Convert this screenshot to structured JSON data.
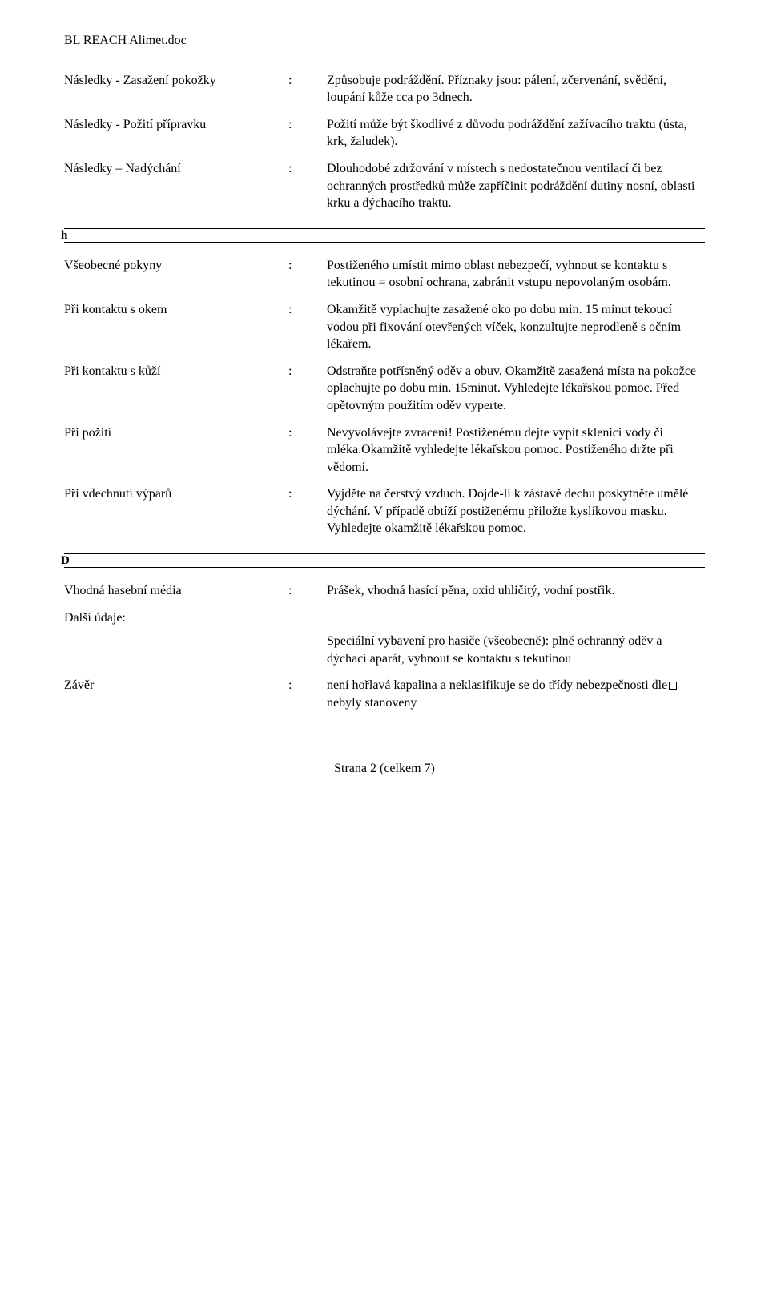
{
  "header": "BL REACH Alimet.doc",
  "section_a": [
    {
      "label": "Následky - Zasažení pokožky",
      "value": "Způsobuje podráždění. Příznaky jsou: pálení, zčervenání, svědění, loupání kůže cca po 3dnech."
    },
    {
      "label": "Následky - Požití přípravku",
      "value": "Požití může být škodlivé z důvodu podráždění zažívacího traktu (ústa, krk, žaludek)."
    },
    {
      "label": "Následky – Nadýchání",
      "value": "Dlouhodobé zdržování v místech s nedostatečnou ventilací či bez ochranných prostředků může zapříčinit podráždění dutiny nosní, oblasti krku a dýchacího traktu."
    }
  ],
  "divider1_glyph": "h",
  "section_b": [
    {
      "label": "Všeobecné pokyny",
      "value": "Postiženého umístit mimo oblast nebezpečí, vyhnout se kontaktu s tekutinou = osobní ochrana, zabránit vstupu nepovolaným osobám."
    },
    {
      "label": "Při kontaktu s okem",
      "value": "Okamžitě vyplachujte zasažené oko po dobu min. 15 minut tekoucí vodou při fixování otevřených víček, konzultujte neprodleně s očním lékařem."
    },
    {
      "label": "Při kontaktu s kůží",
      "value": "Odstraňte potřísněný oděv a obuv. Okamžitě zasažená místa na pokožce oplachujte po dobu min. 15minut. Vyhledejte lékařskou pomoc. Před opětovným použitím oděv vyperte."
    },
    {
      "label": "Při požití",
      "value": "Nevyvolávejte zvracení! Postiženému dejte vypít sklenici vody či mléka.Okamžitě vyhledejte lékařskou pomoc. Postiženého držte při vědomí."
    },
    {
      "label": "Při vdechnutí výparů",
      "value": "Vyjděte na čerstvý vzduch. Dojde-li k zástavě dechu poskytněte umělé dýchání. V případě obtíží postiženému přiložte kyslíkovou masku. Vyhledejte okamžitě lékařskou pomoc."
    }
  ],
  "divider2_glyph": "D",
  "section_c": {
    "row1": {
      "label": "Vhodná hasební média",
      "value": "Prášek, vhodná hasící pěna, oxid uhličitý, vodní postřik."
    },
    "further_label": "Další údaje:",
    "further_value": "Speciální vybavení pro hasiče (všeobecně): plně ochranný oděv a dýchací aparát, vyhnout se kontaktu s tekutinou",
    "row3_label": "Závěr",
    "row3_value_pre": "není hořlavá kapalina a neklasifikuje se do třídy nebezpečnosti dle",
    "row3_value_post": "nebyly stanoveny"
  },
  "footer": "Strana 2 (celkem 7)"
}
